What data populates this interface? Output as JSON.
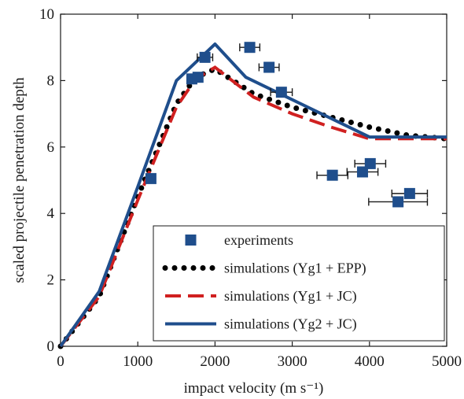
{
  "chart_data": {
    "type": "scatter",
    "title": "",
    "xlabel": "impact velocity (m s⁻¹)",
    "ylabel": "scaled projectile penetration depth",
    "xlim": [
      0,
      5000
    ],
    "ylim": [
      0,
      10
    ],
    "xticks": [
      "0",
      "1000",
      "2000",
      "3000",
      "4000",
      "5000"
    ],
    "yticks": [
      "0",
      "2",
      "4",
      "6",
      "8",
      "10"
    ],
    "grid": false,
    "legend_position": "bottom-right",
    "series": [
      {
        "name": "experiments",
        "kind": "scatter",
        "marker": "square",
        "color": "#1f4e8c",
        "points": [
          {
            "x": 1170,
            "y": 5.05,
            "xerr": 0
          },
          {
            "x": 1700,
            "y": 8.05,
            "xerr": 60
          },
          {
            "x": 1780,
            "y": 8.1,
            "xerr": 0
          },
          {
            "x": 1870,
            "y": 8.7,
            "xerr": 100
          },
          {
            "x": 2450,
            "y": 9.0,
            "xerr": 130
          },
          {
            "x": 2700,
            "y": 8.4,
            "xerr": 130
          },
          {
            "x": 2860,
            "y": 7.65,
            "xerr": 140
          },
          {
            "x": 3520,
            "y": 5.15,
            "xerr": 200
          },
          {
            "x": 3910,
            "y": 5.25,
            "xerr": 200
          },
          {
            "x": 4010,
            "y": 5.5,
            "xerr": 200
          },
          {
            "x": 4370,
            "y": 4.35,
            "xerr": 380
          },
          {
            "x": 4520,
            "y": 4.6,
            "xerr": 230
          }
        ]
      },
      {
        "name": "simulations (Yg1 + EPP)",
        "kind": "line",
        "style": "dotted",
        "color": "#000000",
        "points": [
          {
            "x": 0,
            "y": 0
          },
          {
            "x": 500,
            "y": 1.5
          },
          {
            "x": 1000,
            "y": 4.5
          },
          {
            "x": 1500,
            "y": 7.3
          },
          {
            "x": 1750,
            "y": 8.1
          },
          {
            "x": 2000,
            "y": 8.35
          },
          {
            "x": 2500,
            "y": 7.6
          },
          {
            "x": 3000,
            "y": 7.2
          },
          {
            "x": 3500,
            "y": 6.9
          },
          {
            "x": 4000,
            "y": 6.6
          },
          {
            "x": 4500,
            "y": 6.35
          },
          {
            "x": 5000,
            "y": 6.25
          }
        ]
      },
      {
        "name": "simulations (Yg1 + JC)",
        "kind": "line",
        "style": "dashed",
        "color": "#d02020",
        "points": [
          {
            "x": 0,
            "y": 0
          },
          {
            "x": 500,
            "y": 1.5
          },
          {
            "x": 1000,
            "y": 4.4
          },
          {
            "x": 1500,
            "y": 7.2
          },
          {
            "x": 1750,
            "y": 8.05
          },
          {
            "x": 2000,
            "y": 8.4
          },
          {
            "x": 2500,
            "y": 7.5
          },
          {
            "x": 3000,
            "y": 7.0
          },
          {
            "x": 3500,
            "y": 6.6
          },
          {
            "x": 4000,
            "y": 6.25
          },
          {
            "x": 5000,
            "y": 6.25
          }
        ]
      },
      {
        "name": "simulations (Yg2 + JC)",
        "kind": "line",
        "style": "solid",
        "color": "#1f4e8c",
        "points": [
          {
            "x": 0,
            "y": 0
          },
          {
            "x": 500,
            "y": 1.65
          },
          {
            "x": 1000,
            "y": 4.8
          },
          {
            "x": 1500,
            "y": 8.0
          },
          {
            "x": 2000,
            "y": 9.1
          },
          {
            "x": 2400,
            "y": 8.1
          },
          {
            "x": 4000,
            "y": 6.3
          },
          {
            "x": 5000,
            "y": 6.3
          }
        ]
      }
    ]
  }
}
